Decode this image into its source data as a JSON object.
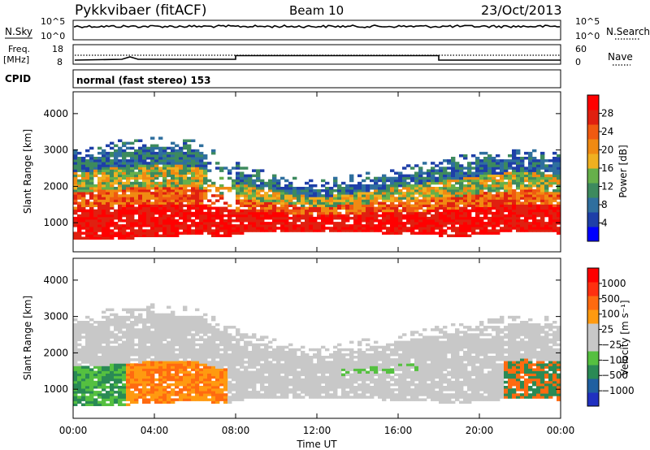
{
  "header": {
    "station": "Pykkvibaer (fitACF)",
    "beam": "Beam 10",
    "date": "23/Oct/2013"
  },
  "strip_panels": {
    "nsky_label": "N.Sky",
    "nsky_ticks": [
      "10^5",
      "10^0"
    ],
    "nsearch_label": "N.Search",
    "nsearch_ticks": [
      "10^5",
      "10^0"
    ],
    "freq_label": "Freq.",
    "freq_unit": "[MHz]",
    "freq_ticks": [
      "18",
      "8"
    ],
    "nave_label": "Nave",
    "nave_ticks": [
      "60",
      "0"
    ],
    "cpid_label": "CPID",
    "cpid_text": "normal (fast stereo) 153"
  },
  "colors": {
    "power": [
      "#0000ff",
      "#1e3fa8",
      "#2f6f9e",
      "#3d8a5e",
      "#66b04a",
      "#f0b020",
      "#f08a12",
      "#f05a10",
      "#e02010",
      "#ff0000"
    ],
    "velocity": [
      "#2030c0",
      "#1f5fa0",
      "#2a8a55",
      "#55c040",
      "#c8c8c8",
      "#c8c8c8",
      "#ff9a10",
      "#ff6a10",
      "#ff3010",
      "#ff0000"
    ]
  },
  "chart_data": [
    {
      "type": "heatmap",
      "name": "power",
      "xlabel": "Time UT",
      "ylabel": "Slant Range [km]",
      "x_ticks": [
        "00:00",
        "04:00",
        "08:00",
        "12:00",
        "16:00",
        "20:00",
        "00:00"
      ],
      "y_ticks": [
        "1000",
        "2000",
        "3000",
        "4000"
      ],
      "ylim": [
        200,
        4600
      ],
      "colorbar_label": "Power [dB]",
      "colorbar_ticks": [
        "28",
        "24",
        "20",
        "16",
        "12",
        "8",
        "4"
      ],
      "colorbar_range": [
        0,
        30
      ]
    },
    {
      "type": "heatmap",
      "name": "velocity",
      "xlabel": "Time UT",
      "ylabel": "Slant Range [km]",
      "x_ticks": [
        "00:00",
        "04:00",
        "08:00",
        "12:00",
        "16:00",
        "20:00",
        "00:00"
      ],
      "y_ticks": [
        "1000",
        "2000",
        "3000",
        "4000"
      ],
      "ylim": [
        200,
        4600
      ],
      "colorbar_label": "Velocity [m s⁻¹]",
      "colorbar_ticks": [
        "1000",
        "500",
        "100",
        "25",
        "−25",
        "−100",
        "−500",
        "−1000"
      ]
    }
  ]
}
